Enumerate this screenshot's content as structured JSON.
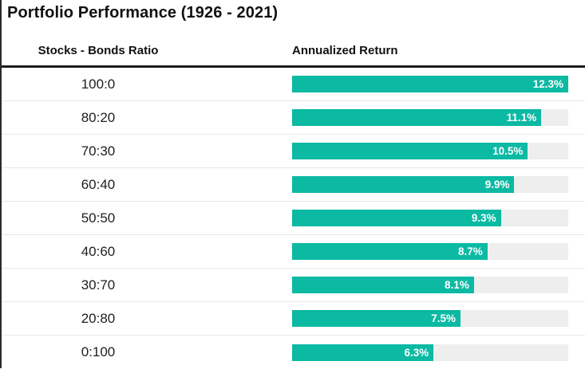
{
  "title": "Portfolio Performance (1926 - 2021)",
  "header": {
    "ratio_col": "Stocks - Bonds Ratio",
    "return_col": "Annualized Return"
  },
  "colors": {
    "bar_fill": "#0cb9a3",
    "bar_track": "#eeeeee",
    "header_rule": "#1c1c1c",
    "row_divider": "#e8e8e8",
    "value_label_text": "#ffffff"
  },
  "chart_data": {
    "type": "bar",
    "orientation": "horizontal",
    "title": "Portfolio Performance (1926 - 2021)",
    "categories": [
      "100:0",
      "80:20",
      "70:30",
      "60:40",
      "50:50",
      "40:60",
      "30:70",
      "20:80",
      "0:100"
    ],
    "values": [
      12.3,
      11.1,
      10.5,
      9.9,
      9.3,
      8.7,
      8.1,
      7.5,
      6.3
    ],
    "value_labels": [
      "12.3%",
      "11.1%",
      "10.5%",
      "9.9%",
      "9.3%",
      "8.7%",
      "8.1%",
      "7.5%",
      "6.3%"
    ],
    "xlabel": "Annualized Return",
    "ylabel": "Stocks - Bonds Ratio",
    "xlim": [
      0,
      12.3
    ],
    "grid": false,
    "legend": false
  },
  "rows": [
    {
      "ratio": "100:0",
      "value": 12.3,
      "label": "12.3%"
    },
    {
      "ratio": "80:20",
      "value": 11.1,
      "label": "11.1%"
    },
    {
      "ratio": "70:30",
      "value": 10.5,
      "label": "10.5%"
    },
    {
      "ratio": "60:40",
      "value": 9.9,
      "label": "9.9%"
    },
    {
      "ratio": "50:50",
      "value": 9.3,
      "label": "9.3%"
    },
    {
      "ratio": "40:60",
      "value": 8.7,
      "label": "8.7%"
    },
    {
      "ratio": "30:70",
      "value": 8.1,
      "label": "8.1%"
    },
    {
      "ratio": "20:80",
      "value": 7.5,
      "label": "7.5%"
    },
    {
      "ratio": "0:100",
      "value": 6.3,
      "label": "6.3%"
    }
  ]
}
